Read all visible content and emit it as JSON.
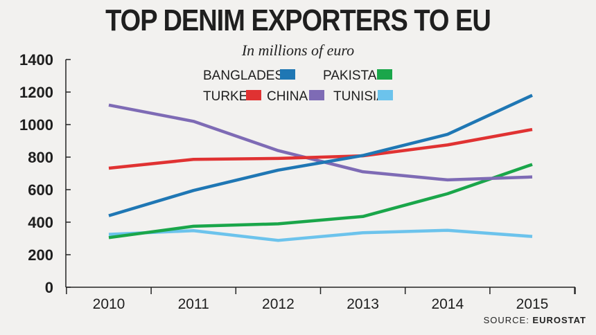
{
  "chart_data": {
    "type": "line",
    "title": "TOP DENIM EXPORTERS TO EU",
    "subtitle": "In millions of euro",
    "xlabel": "",
    "ylabel": "",
    "x": [
      "2010",
      "2011",
      "2012",
      "2013",
      "2014",
      "2015"
    ],
    "ylim": [
      0,
      1400
    ],
    "yticks": [
      0,
      200,
      400,
      600,
      800,
      1000,
      1200,
      1400
    ],
    "grid": false,
    "legend_position": "top-center",
    "series": [
      {
        "name": "BANGLADESH",
        "color": "#1f77b4",
        "values": [
          440,
          595,
          720,
          810,
          940,
          1180
        ]
      },
      {
        "name": "PAKISTAN",
        "color": "#1aa64a",
        "values": [
          305,
          375,
          390,
          435,
          575,
          755
        ]
      },
      {
        "name": "TURKEY",
        "color": "#e03232",
        "values": [
          732,
          786,
          792,
          808,
          875,
          970
        ]
      },
      {
        "name": "CHINA",
        "color": "#7e6bb5",
        "values": [
          1120,
          1020,
          840,
          710,
          660,
          678
        ]
      },
      {
        "name": "TUNISIA",
        "color": "#6cc3ec",
        "values": [
          325,
          348,
          288,
          335,
          350,
          312
        ]
      }
    ]
  },
  "source": {
    "prefix": "SOURCE: ",
    "name": "EUROSTAT"
  }
}
